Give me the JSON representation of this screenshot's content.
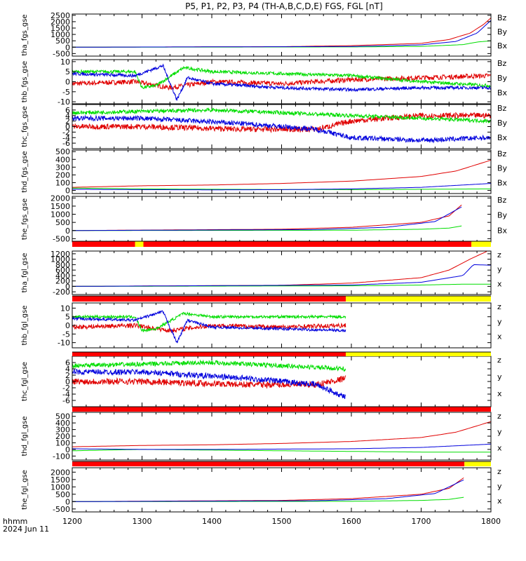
{
  "title": "P5, P1, P2, P3, P4 (TH-A,B,C,D,E) FGS, FGL [nT]",
  "footer": {
    "line1": "hhmm",
    "line2": "2024 Jun 11"
  },
  "x_ticks": [
    "1200",
    "1300",
    "1400",
    "1500",
    "1600",
    "1700",
    "1800"
  ],
  "colors": {
    "z": "#e00000",
    "y": "#00dd00",
    "x": "#0000dd",
    "red_bar": "#ff0000",
    "yellow_bar": "#ffff00"
  },
  "chart_data": {
    "type": "line",
    "x_range": [
      1200,
      1800
    ],
    "panels": [
      {
        "ylabel": "tha_fgs_gse",
        "ylim": [
          -700,
          2600
        ],
        "yticks": [
          "2500",
          "2000",
          "1500",
          "1000",
          "500",
          "0",
          "-500"
        ],
        "ytick_vals": [
          2500,
          2000,
          1500,
          1000,
          500,
          0,
          -500
        ],
        "legend": [
          "Bz",
          "By",
          "Bx"
        ],
        "series": [
          {
            "name": "Bz",
            "color": "z",
            "x": [
              1200,
              1500,
              1600,
              1700,
              1740,
              1770,
              1790,
              1800
            ],
            "y": [
              0,
              40,
              120,
              300,
              600,
              1100,
              1800,
              2300
            ]
          },
          {
            "name": "By",
            "color": "y",
            "x": [
              1200,
              1600,
              1700,
              1760,
              1780,
              1800
            ],
            "y": [
              0,
              20,
              60,
              200,
              400,
              500
            ]
          },
          {
            "name": "Bx",
            "color": "x",
            "x": [
              1200,
              1600,
              1700,
              1750,
              1780,
              1800
            ],
            "y": [
              0,
              50,
              180,
              450,
              1100,
              2100
            ]
          }
        ]
      },
      {
        "ylabel": "thb_fgs_gse",
        "ylim": [
          -11,
          11
        ],
        "yticks": [
          "10",
          "5",
          "0",
          "-5",
          "-10"
        ],
        "ytick_vals": [
          10,
          5,
          0,
          -5,
          -10
        ],
        "legend": [
          "Bz",
          "By",
          "Bx"
        ],
        "series": [
          {
            "name": "Bz",
            "color": "z",
            "x": [
              1200,
              1290,
              1340,
              1400,
              1500,
              1600,
              1700,
              1800
            ],
            "y": [
              -1,
              0,
              -3,
              0,
              -1,
              1,
              2,
              3
            ],
            "noise": 1.2
          },
          {
            "name": "By",
            "color": "y",
            "x": [
              1200,
              1290,
              1300,
              1320,
              1360,
              1400,
              1500,
              1600,
              1700,
              1800
            ],
            "y": [
              5,
              5,
              -3,
              -2,
              7,
              5,
              4,
              3,
              0,
              -2
            ],
            "noise": 0.8
          },
          {
            "name": "Bx",
            "color": "x",
            "x": [
              1200,
              1290,
              1330,
              1350,
              1365,
              1400,
              1500,
              1600,
              1700,
              1800
            ],
            "y": [
              4,
              3,
              8,
              -9,
              2,
              -1,
              -3,
              -4,
              -3,
              -3
            ],
            "noise": 0.8
          }
        ]
      },
      {
        "ylabel": "thc_fgs_gse",
        "ylim": [
          -8,
          8
        ],
        "yticks": [
          "6",
          "4",
          "2",
          "0",
          "-2",
          "-4",
          "-6"
        ],
        "ytick_vals": [
          6,
          4,
          2,
          0,
          -2,
          -4,
          -6
        ],
        "legend": [
          "Bz",
          "By",
          "Bx"
        ],
        "series": [
          {
            "name": "Bz",
            "color": "z",
            "x": [
              1200,
              1300,
              1450,
              1550,
              1600,
              1700,
              1800
            ],
            "y": [
              0,
              0,
              -1,
              -1,
              2,
              4,
              4
            ],
            "noise": 1.0
          },
          {
            "name": "By",
            "color": "y",
            "x": [
              1200,
              1400,
              1500,
              1600,
              1700,
              1800
            ],
            "y": [
              5,
              6,
              5,
              4,
              3,
              2
            ],
            "noise": 0.7
          },
          {
            "name": "Bx",
            "color": "x",
            "x": [
              1200,
              1300,
              1450,
              1550,
              1600,
              1700,
              1800
            ],
            "y": [
              3,
              3,
              1,
              -1,
              -4,
              -5,
              -4
            ],
            "noise": 0.9
          }
        ]
      },
      {
        "ylabel": "thd_fgs_gse",
        "ylim": [
          -40,
          520
        ],
        "yticks": [
          "500",
          "400",
          "300",
          "200",
          "100",
          "0"
        ],
        "ytick_vals": [
          500,
          400,
          300,
          200,
          100,
          0
        ],
        "legend": [
          "Bz",
          "By",
          "Bx"
        ],
        "series": [
          {
            "name": "Bz",
            "color": "z",
            "x": [
              1200,
              1300,
              1400,
              1500,
              1600,
              1700,
              1750,
              1800
            ],
            "y": [
              40,
              60,
              70,
              90,
              120,
              180,
              250,
              390
            ]
          },
          {
            "name": "By",
            "color": "y",
            "x": [
              1200,
              1300,
              1400,
              1500,
              1600,
              1700,
              1800
            ],
            "y": [
              30,
              20,
              15,
              12,
              10,
              15,
              20
            ]
          },
          {
            "name": "Bx",
            "color": "x",
            "x": [
              1200,
              1300,
              1400,
              1500,
              1600,
              1700,
              1800
            ],
            "y": [
              15,
              10,
              8,
              10,
              20,
              40,
              90
            ]
          }
        ]
      },
      {
        "ylabel": "the_fgs_gse",
        "ylim": [
          -700,
          2100
        ],
        "yticks": [
          "2000",
          "1500",
          "1000",
          "500",
          "0",
          "-500"
        ],
        "ytick_vals": [
          2000,
          1500,
          1000,
          500,
          0,
          -500
        ],
        "legend": [
          "Bz",
          "By",
          "Bx"
        ],
        "series": [
          {
            "name": "Bz",
            "color": "z",
            "x": [
              1200,
              1500,
              1600,
              1700,
              1740,
              1760
            ],
            "y": [
              0,
              80,
              200,
              500,
              900,
              1650
            ]
          },
          {
            "name": "By",
            "color": "y",
            "x": [
              1200,
              1600,
              1700,
              1740,
              1760
            ],
            "y": [
              0,
              20,
              80,
              150,
              300
            ]
          },
          {
            "name": "Bx",
            "color": "x",
            "x": [
              1200,
              1550,
              1650,
              1720,
              1760
            ],
            "y": [
              0,
              60,
              200,
              550,
              1500
            ]
          }
        ]
      },
      {
        "ylabel": "tha_fgl_gse",
        "ylim": [
          -300,
          1300
        ],
        "yticks": [
          "1200",
          "1000",
          "800",
          "600",
          "400",
          "200",
          "0",
          "-200"
        ],
        "ytick_vals": [
          1200,
          1000,
          800,
          600,
          400,
          200,
          0,
          -200
        ],
        "legend": [
          "z",
          "y",
          "x"
        ],
        "series": [
          {
            "name": "z",
            "color": "z",
            "x": [
              1200,
              1500,
              1600,
              1700,
              1740,
              1770,
              1795
            ],
            "y": [
              0,
              40,
              120,
              320,
              600,
              1000,
              1300
            ]
          },
          {
            "name": "y",
            "color": "y",
            "x": [
              1200,
              1600,
              1700,
              1760,
              1800
            ],
            "y": [
              0,
              20,
              50,
              80,
              80
            ]
          },
          {
            "name": "x",
            "color": "x",
            "x": [
              1200,
              1600,
              1700,
              1760,
              1775,
              1800
            ],
            "y": [
              0,
              50,
              150,
              400,
              800,
              780
            ]
          }
        ]
      },
      {
        "ylabel": "thb_fgl_gse",
        "ylim": [
          -13,
          13
        ],
        "yticks": [
          "10",
          "5",
          "0",
          "-5",
          "-10"
        ],
        "ytick_vals": [
          10,
          5,
          0,
          -5,
          -10
        ],
        "legend": [
          "z",
          "y",
          "x"
        ],
        "x_end": 1592,
        "series": [
          {
            "name": "z",
            "color": "z",
            "x": [
              1200,
              1290,
              1340,
              1400,
              1500,
              1592
            ],
            "y": [
              -1,
              0,
              -3,
              0,
              -1,
              0
            ],
            "noise": 1.3
          },
          {
            "name": "y",
            "color": "y",
            "x": [
              1200,
              1290,
              1300,
              1320,
              1360,
              1400,
              1500,
              1592
            ],
            "y": [
              5,
              5,
              -3,
              -2,
              7,
              5,
              5,
              5
            ],
            "noise": 0.8
          },
          {
            "name": "x",
            "color": "x",
            "x": [
              1200,
              1290,
              1330,
              1350,
              1365,
              1400,
              1500,
              1592
            ],
            "y": [
              4,
              3,
              8,
              -10,
              3,
              -1,
              -2,
              -3
            ],
            "noise": 0.8
          }
        ]
      },
      {
        "ylabel": "thc_fgl_gse",
        "ylim": [
          -8,
          8
        ],
        "yticks": [
          "6",
          "4",
          "2",
          "0",
          "-2",
          "-4",
          "-6"
        ],
        "ytick_vals": [
          6,
          4,
          2,
          0,
          -2,
          -4,
          -6
        ],
        "legend": [
          "z",
          "y",
          "x"
        ],
        "x_end": 1592,
        "series": [
          {
            "name": "z",
            "color": "z",
            "x": [
              1200,
              1300,
              1450,
              1550,
              1592
            ],
            "y": [
              0,
              0,
              -1,
              -1,
              1
            ],
            "noise": 1.0
          },
          {
            "name": "y",
            "color": "y",
            "x": [
              1200,
              1400,
              1500,
              1592
            ],
            "y": [
              5,
              6,
              5,
              4
            ],
            "noise": 0.7
          },
          {
            "name": "x",
            "color": "x",
            "x": [
              1200,
              1300,
              1450,
              1550,
              1592
            ],
            "y": [
              3,
              3,
              1,
              -1,
              -5
            ],
            "noise": 0.9
          }
        ]
      },
      {
        "ylabel": "thd_fgl_gse",
        "ylim": [
          -160,
          560
        ],
        "yticks": [
          "500",
          "400",
          "300",
          "200",
          "100",
          "0",
          "-100"
        ],
        "ytick_vals": [
          500,
          400,
          300,
          200,
          100,
          0,
          -100
        ],
        "legend": [
          "z",
          "y",
          "x"
        ],
        "series": [
          {
            "name": "z",
            "color": "z",
            "x": [
              1200,
              1300,
              1400,
              1500,
              1600,
              1700,
              1750,
              1800
            ],
            "y": [
              40,
              60,
              70,
              90,
              120,
              180,
              260,
              420
            ]
          },
          {
            "name": "y",
            "color": "y",
            "x": [
              1200,
              1300,
              1400,
              1500,
              1600,
              1700,
              1800
            ],
            "y": [
              -20,
              0,
              -10,
              -20,
              -30,
              -40,
              -40
            ]
          },
          {
            "name": "x",
            "color": "x",
            "x": [
              1200,
              1300,
              1400,
              1500,
              1600,
              1700,
              1800
            ],
            "y": [
              10,
              0,
              0,
              5,
              10,
              30,
              80
            ]
          }
        ]
      },
      {
        "ylabel": "the_fgl_gse",
        "ylim": [
          -700,
          2300
        ],
        "yticks": [
          "2000",
          "1500",
          "1000",
          "500",
          "0",
          "-500"
        ],
        "ytick_vals": [
          2000,
          1500,
          1000,
          500,
          0,
          -500
        ],
        "legend": [
          "z",
          "y",
          "x"
        ],
        "series": [
          {
            "name": "z",
            "color": "z",
            "x": [
              1200,
              1500,
              1600,
              1700,
              1740,
              1762
            ],
            "y": [
              0,
              80,
              200,
              500,
              900,
              1650
            ]
          },
          {
            "name": "y",
            "color": "y",
            "x": [
              1200,
              1600,
              1700,
              1740,
              1762
            ],
            "y": [
              0,
              20,
              80,
              150,
              300
            ]
          },
          {
            "name": "x",
            "color": "x",
            "x": [
              1200,
              1550,
              1650,
              1720,
              1762
            ],
            "y": [
              0,
              60,
              200,
              550,
              1500
            ]
          }
        ]
      }
    ]
  }
}
